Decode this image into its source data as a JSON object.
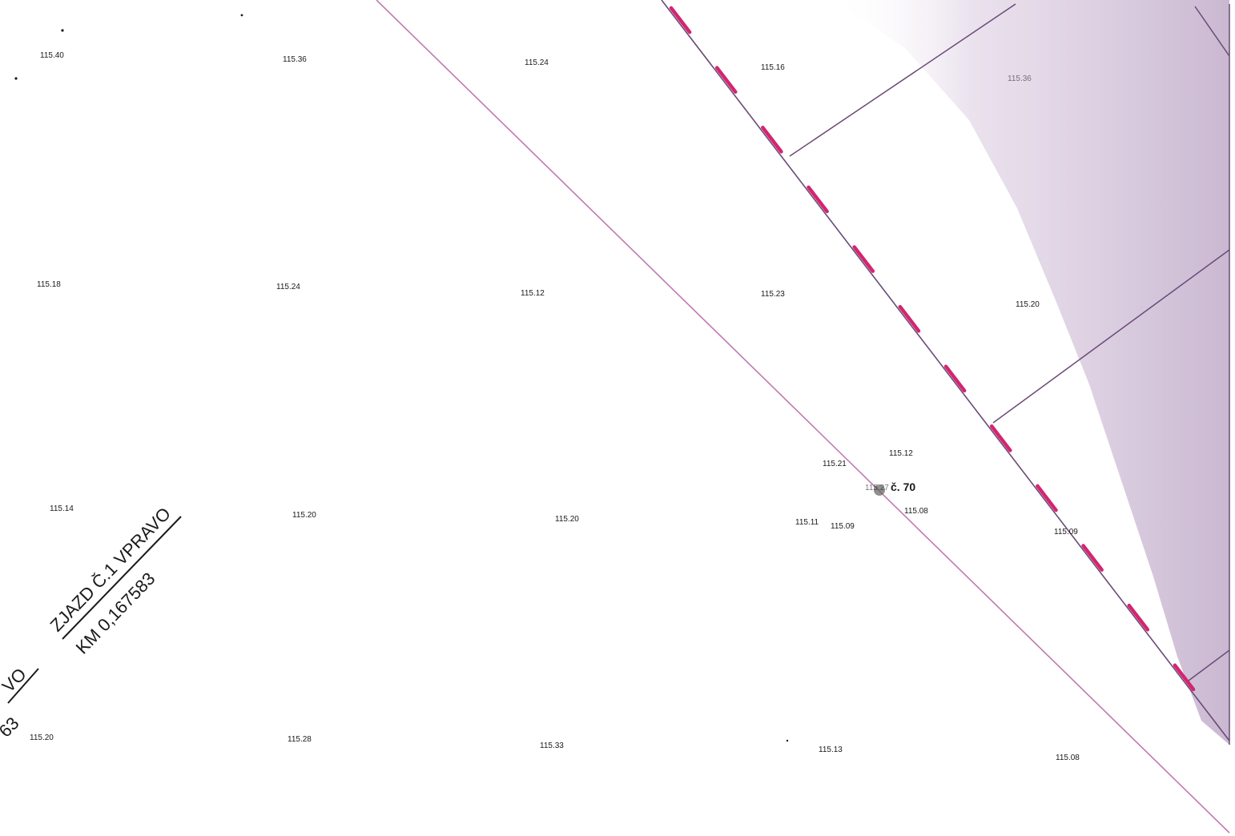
{
  "map": {
    "lot_label": "č. 70",
    "lot_label_overprint": "115.27",
    "access_label": {
      "line1": "ZJAZD Č.1 VPRAVO",
      "line2": "KM 0,167583"
    },
    "edge_fragments": {
      "upper": "VO",
      "lower": "63"
    },
    "colors": {
      "parcel_line": "#6a4a78",
      "road_edge": "#c07ab0",
      "boundary_dash": "#d6246e",
      "shaded_area": "#c4b0cc",
      "text": "#1a1a1a"
    },
    "elevations": [
      {
        "id": "e1",
        "value": "115.40"
      },
      {
        "id": "e2",
        "value": "115.36"
      },
      {
        "id": "e3",
        "value": "115.24"
      },
      {
        "id": "e4",
        "value": "115.16"
      },
      {
        "id": "e5",
        "value": "115.36"
      },
      {
        "id": "e6",
        "value": "115.18"
      },
      {
        "id": "e7",
        "value": "115.24"
      },
      {
        "id": "e8",
        "value": "115.12"
      },
      {
        "id": "e9",
        "value": "115.23"
      },
      {
        "id": "e10",
        "value": "115.20"
      },
      {
        "id": "e11",
        "value": "115.21"
      },
      {
        "id": "e12",
        "value": "115.12"
      },
      {
        "id": "e13",
        "value": "115.14"
      },
      {
        "id": "e14",
        "value": "115.20"
      },
      {
        "id": "e15",
        "value": "115.20"
      },
      {
        "id": "e16",
        "value": "115.11"
      },
      {
        "id": "e17",
        "value": "115.09"
      },
      {
        "id": "e18",
        "value": "115.08"
      },
      {
        "id": "e19",
        "value": "115.09"
      },
      {
        "id": "e20",
        "value": "115.20"
      },
      {
        "id": "e21",
        "value": "115.28"
      },
      {
        "id": "e22",
        "value": "115.33"
      },
      {
        "id": "e23",
        "value": "115.13"
      },
      {
        "id": "e24",
        "value": "115.08"
      }
    ]
  }
}
